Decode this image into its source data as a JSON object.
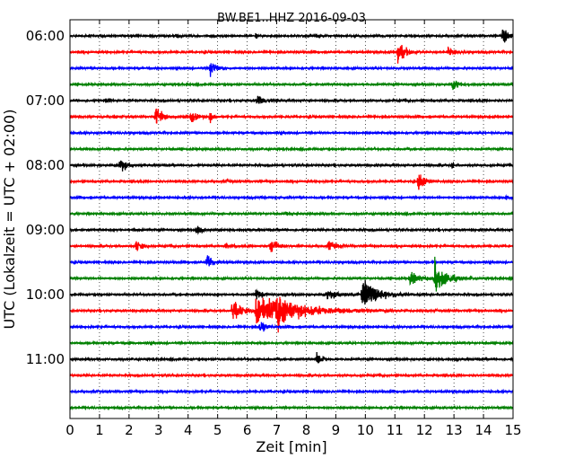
{
  "chart_data": {
    "type": "line",
    "title": "BW.BE1..HHZ 2016-09-03",
    "xlabel": "Zeit  [min]",
    "ylabel": "UTC (Lokalzeit = UTC + 02:00)",
    "xlim": [
      0,
      15
    ],
    "x_ticks": [
      "0",
      "1",
      "2",
      "3",
      "4",
      "5",
      "6",
      "7",
      "8",
      "9",
      "10",
      "11",
      "12",
      "13",
      "14",
      "15"
    ],
    "y_tick_labels": [
      "06:00",
      "07:00",
      "08:00",
      "09:00",
      "10:00",
      "11:00"
    ],
    "grid": {
      "x": true,
      "y": false,
      "style": "dotted"
    },
    "legend": "none",
    "color_cycle": [
      "#000000",
      "#ff0000",
      "#0000ff",
      "#008000"
    ],
    "trace_start_times": [
      "06:00",
      "06:15",
      "06:30",
      "06:45",
      "07:00",
      "07:15",
      "07:30",
      "07:45",
      "08:00",
      "08:15",
      "08:30",
      "08:45",
      "09:00",
      "09:15",
      "09:30",
      "09:45",
      "10:00",
      "10:15",
      "10:30",
      "10:45",
      "11:00",
      "11:15",
      "11:30",
      "11:45"
    ],
    "traces_note": "events as [minute, relative amplitude, duration in minutes]",
    "events": [
      [
        [
          14.65,
          1.2,
          0.3
        ],
        [
          6.3,
          0.35,
          0.1
        ]
      ],
      [
        [
          11.1,
          1.2,
          0.35
        ],
        [
          12.8,
          0.55,
          0.25
        ]
      ],
      [
        [
          4.75,
          0.85,
          0.3
        ]
      ],
      [
        [
          12.95,
          0.7,
          0.25
        ]
      ],
      [
        [
          6.35,
          0.9,
          0.25
        ],
        [
          1.2,
          0.3,
          0.15
        ]
      ],
      [
        [
          2.9,
          1.0,
          0.4
        ],
        [
          4.1,
          0.6,
          0.3
        ],
        [
          4.75,
          0.75,
          0.15
        ],
        [
          1.5,
          0.25,
          0.1
        ]
      ],
      [],
      [],
      [
        [
          1.7,
          0.8,
          0.3
        ],
        [
          12.95,
          0.5,
          0.05
        ]
      ],
      [
        [
          11.8,
          1.25,
          0.3
        ],
        [
          5.3,
          0.2,
          0.2
        ]
      ],
      [
        [
          6.5,
          0.2,
          0.3
        ],
        [
          14.7,
          0.25,
          0.2
        ]
      ],
      [
        [
          7.3,
          0.2,
          0.3
        ]
      ],
      [
        [
          4.3,
          0.7,
          0.2
        ],
        [
          2.2,
          0.25,
          0.1
        ]
      ],
      [
        [
          2.25,
          0.6,
          0.25
        ],
        [
          5.3,
          0.3,
          0.2
        ],
        [
          6.8,
          0.75,
          0.4
        ],
        [
          8.75,
          0.55,
          0.35
        ]
      ],
      [
        [
          4.65,
          0.95,
          0.3
        ]
      ],
      [
        [
          12.35,
          1.6,
          0.55
        ],
        [
          11.5,
          0.6,
          0.6
        ]
      ],
      [
        [
          9.9,
          1.45,
          0.8
        ],
        [
          6.3,
          0.55,
          0.3
        ],
        [
          8.7,
          0.4,
          0.8
        ]
      ],
      [
        [
          6.3,
          1.5,
          2.2
        ],
        [
          7.0,
          1.4,
          0.5
        ],
        [
          5.5,
          1.3,
          0.4
        ]
      ],
      [
        [
          6.45,
          0.85,
          0.25
        ]
      ],
      [
        [
          2.0,
          0.2,
          0.1
        ]
      ],
      [
        [
          8.35,
          0.7,
          0.25
        ],
        [
          13.1,
          0.3,
          0.05
        ]
      ],
      [],
      [],
      []
    ]
  }
}
